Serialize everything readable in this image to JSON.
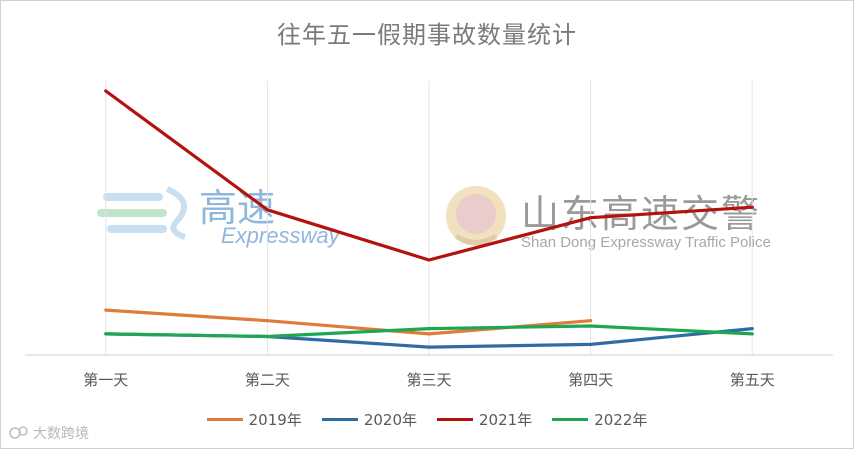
{
  "chart_data": {
    "type": "line",
    "title": "往年五一假期事故数量统计",
    "categories": [
      "第一天",
      "第二天",
      "第三天",
      "第四天",
      "第五天"
    ],
    "ylim": [
      0,
      100
    ],
    "grid": "vertical",
    "legend_position": "bottom",
    "series": [
      {
        "name": "2019年",
        "color": "#e07b39",
        "values": [
          17,
          13,
          8,
          13,
          null
        ]
      },
      {
        "name": "2020年",
        "color": "#2e6da4",
        "values": [
          8,
          7,
          3,
          4,
          10
        ]
      },
      {
        "name": "2021年",
        "color": "#b3120f",
        "values": [
          100,
          55,
          36,
          52,
          56
        ]
      },
      {
        "name": "2022年",
        "color": "#1fa653",
        "values": [
          8,
          7,
          10,
          11,
          8
        ]
      }
    ]
  },
  "watermarks": {
    "left_cn": "高速",
    "left_en": "Expressway",
    "right_cn": "山东高速交警",
    "right_en": "Shan Dong Expressway Traffic Police"
  },
  "source_label": "大数跨境"
}
